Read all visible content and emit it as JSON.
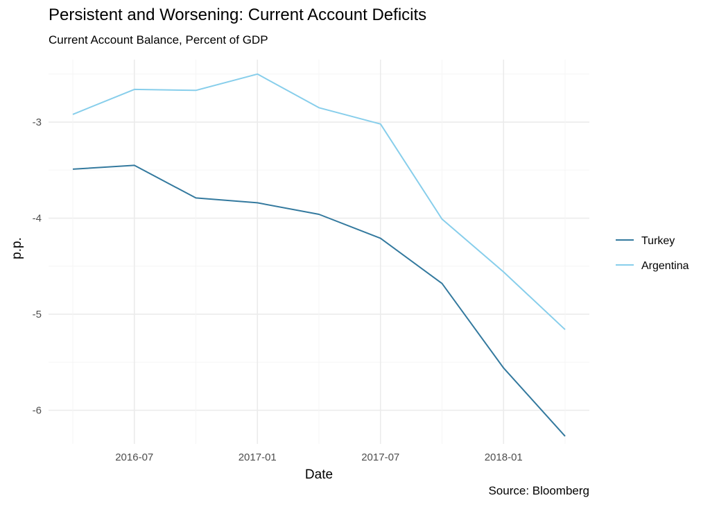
{
  "chart_data": {
    "type": "line",
    "title": "Persistent and Worsening: Current Account Deficits",
    "subtitle": "Current Account Balance, Percent of GDP",
    "caption": "Source: Bloomberg",
    "xlabel": "Date",
    "ylabel": "p.p.",
    "x": [
      "2016-04",
      "2016-07",
      "2016-10",
      "2017-01",
      "2017-04",
      "2017-07",
      "2017-10",
      "2018-01",
      "2018-04"
    ],
    "x_ticks": [
      "2016-07",
      "2017-01",
      "2017-07",
      "2018-01"
    ],
    "y_ticks": [
      "-3",
      "-4",
      "-5",
      "-6"
    ],
    "ylim": [
      -6.35,
      -2.35
    ],
    "series": [
      {
        "name": "Turkey",
        "color": "#33799e",
        "values": [
          -3.49,
          -3.45,
          -3.79,
          -3.84,
          -3.96,
          -4.21,
          -4.68,
          -5.56,
          -6.27
        ]
      },
      {
        "name": "Argentina",
        "color": "#87ceeb",
        "values": [
          -2.92,
          -2.66,
          -2.67,
          -2.5,
          -2.85,
          -3.02,
          -4.01,
          -4.56,
          -5.16
        ]
      }
    ],
    "grid": true,
    "legend": "right"
  }
}
